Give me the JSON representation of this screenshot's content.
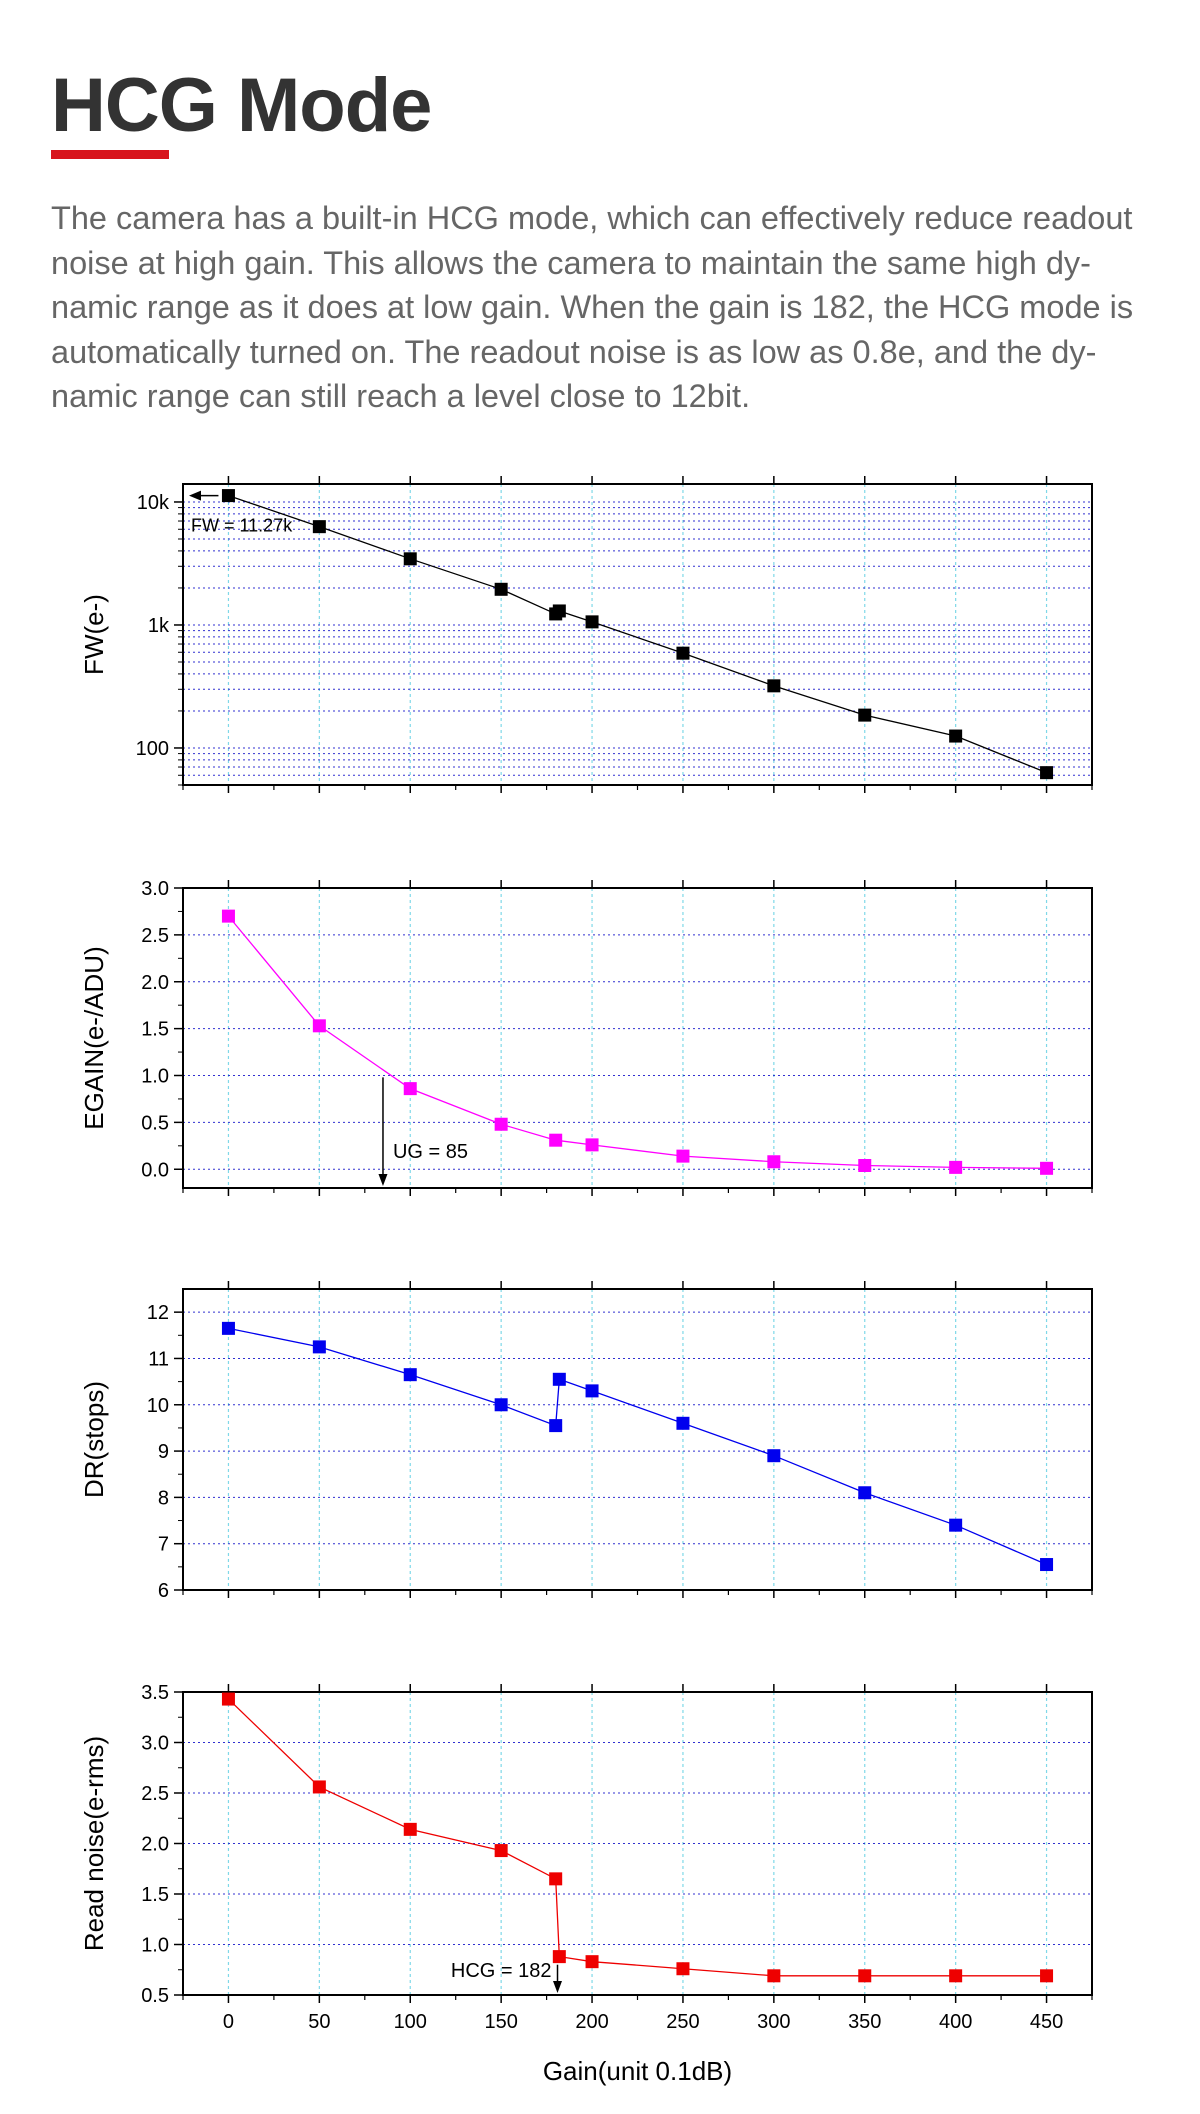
{
  "header": {
    "title": "HCG Mode",
    "accent_color": "#d8141c",
    "intro": "The camera has a built-in HCG mode, which can effectively reduce readout noise at high gain.  This allows the camera to maintain the same high dy-namic range as it does at low gain. When the gain is 182, the HCG mode is automatically turned on. The readout noise is as low as 0.8e, and the dy-namic range can still reach a level close to 12bit."
  },
  "chart_data": [
    {
      "type": "scatter",
      "ylabel": "FW(e-)",
      "yscale": "log",
      "ylim": [
        50,
        14000
      ],
      "xlim": [
        -25,
        475
      ],
      "yticks": [
        {
          "v": 10000,
          "label": "10k"
        },
        {
          "v": 1000,
          "label": "1k"
        },
        {
          "v": 100,
          "label": "100"
        }
      ],
      "color": "#000000",
      "x": [
        0,
        50,
        100,
        150,
        180,
        182,
        200,
        250,
        300,
        350,
        400,
        450
      ],
      "y": [
        11270,
        6300,
        3450,
        1950,
        1230,
        1300,
        1060,
        590,
        320,
        185,
        125,
        63
      ],
      "annotation": "FW = 11.27k"
    },
    {
      "type": "scatter",
      "ylabel": "EGAIN(e-/ADU)",
      "ylim": [
        -0.2,
        3.0
      ],
      "xlim": [
        -25,
        475
      ],
      "yticks": [
        {
          "v": 3.0,
          "label": "3.0"
        },
        {
          "v": 2.5,
          "label": "2.5"
        },
        {
          "v": 2.0,
          "label": "2.0"
        },
        {
          "v": 1.5,
          "label": "1.5"
        },
        {
          "v": 1.0,
          "label": "1.0"
        },
        {
          "v": 0.5,
          "label": "0.5"
        },
        {
          "v": 0.0,
          "label": "0.0"
        }
      ],
      "color": "#ff00ff",
      "x": [
        0,
        50,
        100,
        150,
        180,
        200,
        250,
        300,
        350,
        400,
        450
      ],
      "y": [
        2.7,
        1.53,
        0.86,
        0.48,
        0.31,
        0.26,
        0.14,
        0.08,
        0.04,
        0.02,
        0.01
      ],
      "annotation": "UG = 85"
    },
    {
      "type": "scatter",
      "ylabel": "DR(stops)",
      "ylim": [
        6,
        12.5
      ],
      "xlim": [
        -25,
        475
      ],
      "yticks": [
        {
          "v": 12,
          "label": "12"
        },
        {
          "v": 11,
          "label": "11"
        },
        {
          "v": 10,
          "label": "10"
        },
        {
          "v": 9,
          "label": "9"
        },
        {
          "v": 8,
          "label": "8"
        },
        {
          "v": 7,
          "label": "7"
        },
        {
          "v": 6,
          "label": "6"
        }
      ],
      "color": "#0000ee",
      "x": [
        0,
        50,
        100,
        150,
        180,
        182,
        200,
        250,
        300,
        350,
        400,
        450
      ],
      "y": [
        11.65,
        11.25,
        10.65,
        10.0,
        9.55,
        10.55,
        10.3,
        9.6,
        8.9,
        8.1,
        7.4,
        6.55
      ]
    },
    {
      "type": "scatter",
      "ylabel": "Read noise(e-rms)",
      "ylim": [
        0.5,
        3.5
      ],
      "xlim": [
        -25,
        475
      ],
      "yticks": [
        {
          "v": 3.5,
          "label": "3.5"
        },
        {
          "v": 3.0,
          "label": "3.0"
        },
        {
          "v": 2.5,
          "label": "2.5"
        },
        {
          "v": 2.0,
          "label": "2.0"
        },
        {
          "v": 1.5,
          "label": "1.5"
        },
        {
          "v": 1.0,
          "label": "1.0"
        },
        {
          "v": 0.5,
          "label": "0.5"
        }
      ],
      "color": "#ee0000",
      "x": [
        0,
        50,
        100,
        150,
        180,
        182,
        200,
        250,
        300,
        350,
        400,
        450
      ],
      "y": [
        3.43,
        2.56,
        2.14,
        1.93,
        1.65,
        0.88,
        0.83,
        0.76,
        0.69,
        0.69,
        0.69,
        0.69
      ],
      "annotation": "HCG = 182",
      "xlabel": "Gain(unit 0.1dB)",
      "xticks": [
        "0",
        "50",
        "100",
        "150",
        "200",
        "250",
        "300",
        "350",
        "400",
        "450"
      ]
    }
  ]
}
